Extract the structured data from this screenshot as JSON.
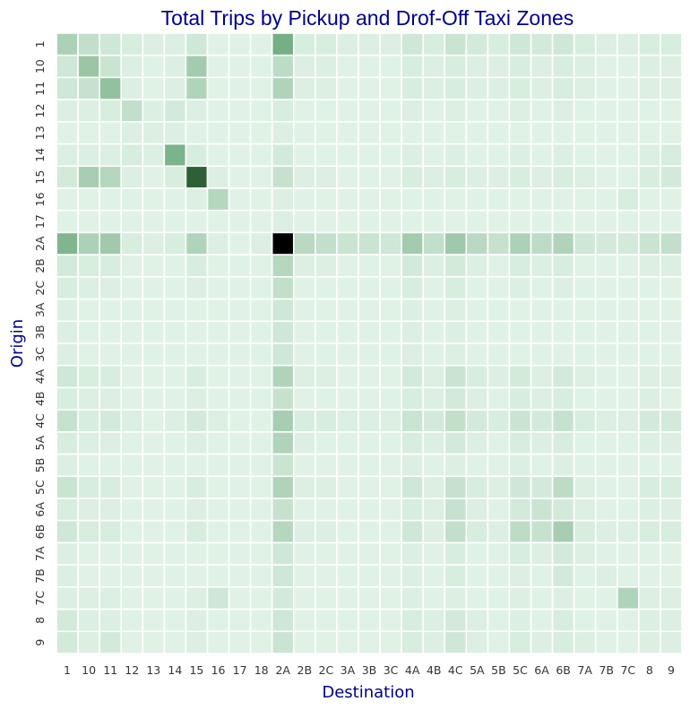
{
  "chart_data": {
    "type": "heatmap",
    "title": "Total Trips by Pickup and Drof-Off Taxi Zones",
    "xlabel": "Destination",
    "ylabel": "Origin",
    "x_categories": [
      "1",
      "10",
      "11",
      "12",
      "13",
      "14",
      "15",
      "16",
      "17",
      "18",
      "2A",
      "2B",
      "2C",
      "3A",
      "3B",
      "3C",
      "4A",
      "4B",
      "4C",
      "5A",
      "5B",
      "5C",
      "6A",
      "6B",
      "7A",
      "7B",
      "7C",
      "8",
      "9"
    ],
    "y_categories": [
      "1",
      "10",
      "11",
      "12",
      "13",
      "14",
      "15",
      "16",
      "17",
      "2A",
      "2B",
      "2C",
      "3A",
      "3B",
      "3C",
      "4A",
      "4B",
      "4C",
      "5A",
      "5B",
      "5C",
      "6A",
      "6B",
      "7A",
      "7B",
      "7C",
      "8",
      "9"
    ],
    "colormap": {
      "low": "#e0f2e6",
      "mid": "#6aa87a",
      "high_mid": "#2a5e34",
      "max": "#000000"
    },
    "cell_border": "#ffffff",
    "values": [
      [
        30,
        20,
        14,
        10,
        8,
        8,
        14,
        6,
        6,
        6,
        55,
        10,
        10,
        8,
        8,
        8,
        14,
        10,
        16,
        12,
        10,
        14,
        12,
        14,
        10,
        8,
        8,
        10,
        10
      ],
      [
        14,
        38,
        16,
        8,
        6,
        8,
        34,
        6,
        6,
        6,
        22,
        8,
        8,
        6,
        6,
        6,
        10,
        8,
        10,
        8,
        8,
        10,
        8,
        10,
        8,
        6,
        6,
        8,
        8
      ],
      [
        14,
        18,
        42,
        8,
        6,
        8,
        28,
        6,
        6,
        6,
        28,
        8,
        8,
        6,
        6,
        6,
        10,
        8,
        10,
        8,
        8,
        10,
        8,
        10,
        8,
        6,
        6,
        8,
        8
      ],
      [
        8,
        8,
        10,
        20,
        8,
        12,
        8,
        6,
        6,
        6,
        10,
        6,
        6,
        6,
        6,
        6,
        8,
        6,
        8,
        6,
        6,
        8,
        6,
        8,
        6,
        6,
        6,
        6,
        6
      ],
      [
        6,
        6,
        6,
        8,
        8,
        8,
        6,
        6,
        6,
        6,
        8,
        6,
        6,
        6,
        6,
        6,
        6,
        6,
        6,
        6,
        6,
        6,
        6,
        6,
        6,
        6,
        6,
        6,
        6
      ],
      [
        8,
        8,
        8,
        10,
        8,
        52,
        10,
        6,
        6,
        6,
        12,
        6,
        6,
        6,
        6,
        6,
        8,
        6,
        8,
        6,
        6,
        8,
        6,
        8,
        6,
        6,
        6,
        8,
        10
      ],
      [
        12,
        32,
        26,
        8,
        6,
        10,
        100,
        8,
        6,
        6,
        18,
        8,
        8,
        6,
        6,
        6,
        10,
        8,
        10,
        8,
        8,
        10,
        8,
        10,
        8,
        6,
        6,
        10,
        12
      ],
      [
        6,
        6,
        6,
        6,
        6,
        6,
        8,
        26,
        6,
        6,
        8,
        6,
        6,
        6,
        6,
        6,
        6,
        6,
        6,
        6,
        6,
        6,
        6,
        6,
        6,
        6,
        10,
        6,
        6
      ],
      [
        6,
        6,
        6,
        6,
        6,
        6,
        6,
        6,
        6,
        6,
        8,
        6,
        6,
        6,
        6,
        6,
        6,
        6,
        6,
        6,
        6,
        6,
        6,
        6,
        6,
        6,
        6,
        6,
        6
      ],
      [
        50,
        30,
        35,
        10,
        8,
        10,
        28,
        8,
        6,
        8,
        160,
        24,
        20,
        16,
        16,
        14,
        34,
        20,
        36,
        24,
        18,
        30,
        22,
        28,
        14,
        12,
        12,
        16,
        20
      ],
      [
        12,
        10,
        10,
        6,
        6,
        6,
        10,
        6,
        6,
        6,
        26,
        8,
        8,
        6,
        6,
        6,
        12,
        8,
        12,
        8,
        6,
        10,
        8,
        10,
        6,
        6,
        6,
        8,
        8
      ],
      [
        10,
        8,
        8,
        6,
        6,
        6,
        8,
        6,
        6,
        6,
        20,
        6,
        6,
        6,
        6,
        6,
        10,
        6,
        10,
        6,
        6,
        8,
        6,
        8,
        6,
        6,
        6,
        6,
        6
      ],
      [
        8,
        6,
        6,
        6,
        6,
        6,
        6,
        6,
        6,
        6,
        14,
        6,
        6,
        6,
        6,
        6,
        8,
        6,
        8,
        6,
        6,
        6,
        6,
        6,
        6,
        6,
        6,
        6,
        6
      ],
      [
        8,
        6,
        6,
        6,
        6,
        6,
        6,
        6,
        6,
        6,
        14,
        6,
        6,
        6,
        6,
        6,
        8,
        6,
        8,
        6,
        6,
        6,
        6,
        6,
        6,
        6,
        6,
        6,
        6
      ],
      [
        8,
        6,
        6,
        6,
        6,
        6,
        6,
        6,
        6,
        6,
        14,
        6,
        6,
        6,
        6,
        6,
        8,
        6,
        8,
        6,
        6,
        6,
        6,
        6,
        6,
        6,
        6,
        6,
        6
      ],
      [
        14,
        10,
        10,
        6,
        6,
        6,
        10,
        6,
        6,
        6,
        28,
        8,
        8,
        6,
        6,
        6,
        12,
        8,
        16,
        10,
        8,
        12,
        8,
        12,
        8,
        6,
        6,
        8,
        8
      ],
      [
        10,
        8,
        8,
        6,
        6,
        6,
        8,
        6,
        6,
        6,
        18,
        6,
        6,
        6,
        6,
        6,
        10,
        8,
        12,
        8,
        6,
        10,
        8,
        10,
        6,
        6,
        6,
        8,
        6
      ],
      [
        18,
        10,
        12,
        8,
        6,
        8,
        12,
        8,
        6,
        6,
        32,
        10,
        10,
        8,
        8,
        8,
        16,
        12,
        20,
        12,
        10,
        16,
        12,
        18,
        10,
        8,
        8,
        12,
        12
      ],
      [
        10,
        8,
        8,
        6,
        6,
        6,
        8,
        6,
        6,
        6,
        28,
        8,
        6,
        6,
        6,
        6,
        10,
        8,
        12,
        8,
        6,
        10,
        8,
        10,
        6,
        6,
        6,
        8,
        8
      ],
      [
        8,
        6,
        6,
        6,
        6,
        6,
        6,
        6,
        6,
        6,
        16,
        6,
        6,
        6,
        6,
        6,
        8,
        6,
        8,
        6,
        6,
        8,
        6,
        8,
        6,
        6,
        6,
        6,
        6
      ],
      [
        16,
        10,
        10,
        6,
        6,
        6,
        10,
        6,
        6,
        6,
        28,
        8,
        8,
        6,
        6,
        6,
        14,
        8,
        18,
        10,
        8,
        14,
        12,
        22,
        8,
        6,
        6,
        10,
        10
      ],
      [
        10,
        8,
        8,
        6,
        6,
        6,
        8,
        6,
        6,
        6,
        18,
        6,
        6,
        6,
        6,
        6,
        10,
        8,
        18,
        8,
        6,
        12,
        16,
        12,
        8,
        6,
        6,
        8,
        8
      ],
      [
        14,
        10,
        10,
        6,
        6,
        6,
        10,
        6,
        6,
        6,
        26,
        8,
        8,
        6,
        6,
        6,
        14,
        8,
        20,
        10,
        8,
        22,
        18,
        32,
        10,
        8,
        8,
        10,
        10
      ],
      [
        8,
        6,
        6,
        6,
        6,
        6,
        6,
        6,
        6,
        6,
        14,
        6,
        6,
        6,
        6,
        6,
        8,
        6,
        10,
        6,
        6,
        10,
        8,
        12,
        8,
        6,
        6,
        6,
        6
      ],
      [
        8,
        6,
        6,
        6,
        6,
        6,
        6,
        6,
        6,
        6,
        14,
        6,
        6,
        6,
        6,
        6,
        8,
        6,
        10,
        6,
        6,
        8,
        6,
        12,
        6,
        8,
        6,
        6,
        6
      ],
      [
        8,
        8,
        8,
        6,
        6,
        6,
        8,
        14,
        6,
        6,
        12,
        6,
        6,
        6,
        6,
        6,
        8,
        6,
        8,
        6,
        6,
        8,
        6,
        8,
        6,
        6,
        28,
        8,
        8
      ],
      [
        12,
        8,
        8,
        6,
        6,
        6,
        8,
        6,
        6,
        6,
        14,
        6,
        6,
        6,
        6,
        6,
        10,
        8,
        12,
        8,
        6,
        8,
        6,
        10,
        6,
        6,
        6,
        8,
        8
      ],
      [
        12,
        8,
        12,
        6,
        6,
        6,
        8,
        6,
        6,
        6,
        16,
        6,
        6,
        6,
        6,
        6,
        10,
        8,
        14,
        8,
        6,
        10,
        8,
        10,
        8,
        6,
        6,
        8,
        8
      ]
    ]
  }
}
